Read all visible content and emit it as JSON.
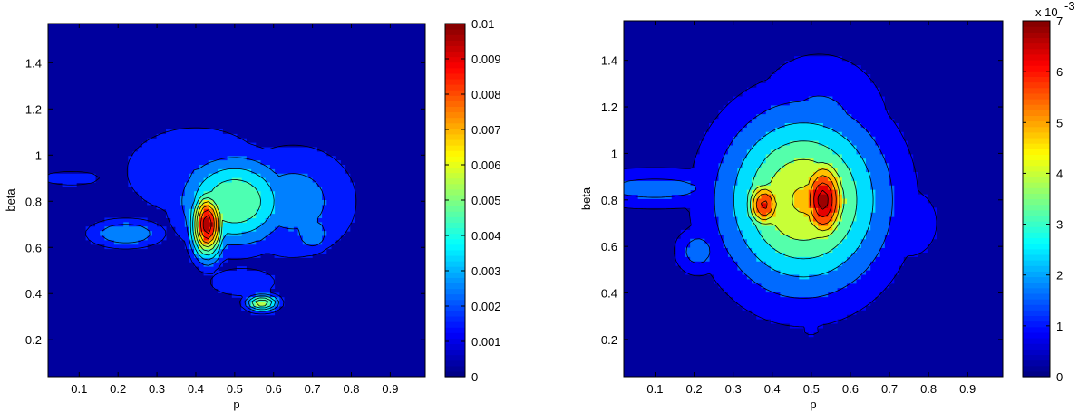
{
  "chart_data": [
    {
      "type": "contour",
      "xlabel": "p",
      "ylabel": "beta",
      "xlim": [
        0.02,
        0.99
      ],
      "ylim": [
        0.04,
        1.57
      ],
      "xticks": [
        0.1,
        0.2,
        0.3,
        0.4,
        0.5,
        0.6,
        0.7,
        0.8,
        0.9
      ],
      "yticks": [
        0.2,
        0.4,
        0.6,
        0.8,
        1.0,
        1.2,
        1.4
      ],
      "xtick_labels": [
        "0.1",
        "0.2",
        "0.3",
        "0.4",
        "0.5",
        "0.6",
        "0.7",
        "0.8",
        "0.9"
      ],
      "ytick_labels": [
        "0.2",
        "0.4",
        "0.6",
        "0.8",
        "1",
        "1.2",
        "1.4"
      ],
      "colorbar": {
        "colormap": "jet",
        "range": [
          0,
          0.01
        ],
        "ticks": [
          0,
          0.001,
          0.002,
          0.003,
          0.004,
          0.005,
          0.006,
          0.007,
          0.008,
          0.009,
          0.01
        ],
        "tick_labels": [
          "0",
          "0.001",
          "0.002",
          "0.003",
          "0.004",
          "0.005",
          "0.006",
          "0.007",
          "0.008",
          "0.009",
          "0.01"
        ],
        "multiplier": ""
      },
      "levels": [
        0.001,
        0.002,
        0.003,
        0.004,
        0.005,
        0.006,
        0.007,
        0.008,
        0.009
      ],
      "peaks": [
        {
          "x": 0.43,
          "y": 0.7,
          "value": 0.0098,
          "sx": 0.028,
          "sy": 0.1
        },
        {
          "x": 0.5,
          "y": 0.8,
          "value": 0.005,
          "sx": 0.1,
          "sy": 0.14
        },
        {
          "x": 0.565,
          "y": 0.71,
          "value": 0.003,
          "sx": 0.025,
          "sy": 0.09
        },
        {
          "x": 0.22,
          "y": 0.66,
          "value": 0.003,
          "sx": 0.07,
          "sy": 0.045
        },
        {
          "x": 0.4,
          "y": 0.93,
          "value": 0.002,
          "sx": 0.15,
          "sy": 0.16
        },
        {
          "x": 0.7,
          "y": 0.66,
          "value": 0.003,
          "sx": 0.035,
          "sy": 0.06
        },
        {
          "x": 0.57,
          "y": 0.36,
          "value": 0.006,
          "sx": 0.03,
          "sy": 0.025
        },
        {
          "x": 0.65,
          "y": 0.8,
          "value": 0.0025,
          "sx": 0.12,
          "sy": 0.18
        },
        {
          "x": 0.08,
          "y": 0.9,
          "value": 0.0012,
          "sx": 0.12,
          "sy": 0.05
        },
        {
          "x": 0.52,
          "y": 0.45,
          "value": 0.002,
          "sx": 0.07,
          "sy": 0.05
        }
      ]
    },
    {
      "type": "contour",
      "xlabel": "p",
      "ylabel": "beta",
      "xlim": [
        0.02,
        0.99
      ],
      "ylim": [
        0.04,
        1.57
      ],
      "xticks": [
        0.1,
        0.2,
        0.3,
        0.4,
        0.5,
        0.6,
        0.7,
        0.8,
        0.9
      ],
      "yticks": [
        0.2,
        0.4,
        0.6,
        0.8,
        1.0,
        1.2,
        1.4
      ],
      "xtick_labels": [
        "0.1",
        "0.2",
        "0.3",
        "0.4",
        "0.5",
        "0.6",
        "0.7",
        "0.8",
        "0.9"
      ],
      "ytick_labels": [
        "0.2",
        "0.4",
        "0.6",
        "0.8",
        "1",
        "1.2",
        "1.4"
      ],
      "colorbar": {
        "colormap": "jet",
        "range": [
          0,
          7
        ],
        "ticks": [
          0,
          1,
          2,
          3,
          4,
          5,
          6,
          7
        ],
        "tick_labels": [
          "0",
          "1",
          "2",
          "3",
          "4",
          "5",
          "6",
          "7"
        ],
        "multiplier": "x 10",
        "multiplier_exponent": "-3"
      },
      "levels": [
        0.5,
        1.2,
        2.0,
        2.8,
        3.6,
        4.4,
        5.2,
        6.0,
        6.6
      ],
      "peaks": [
        {
          "x": 0.53,
          "y": 0.8,
          "value": 6.9,
          "sx": 0.045,
          "sy": 0.14
        },
        {
          "x": 0.38,
          "y": 0.78,
          "value": 6.2,
          "sx": 0.035,
          "sy": 0.08
        },
        {
          "x": 0.48,
          "y": 0.8,
          "value": 4.5,
          "sx": 0.14,
          "sy": 0.26
        },
        {
          "x": 0.52,
          "y": 1.1,
          "value": 1.5,
          "sx": 0.12,
          "sy": 0.22
        },
        {
          "x": 0.1,
          "y": 0.85,
          "value": 1.5,
          "sx": 0.16,
          "sy": 0.06
        },
        {
          "x": 0.21,
          "y": 0.58,
          "value": 1.6,
          "sx": 0.04,
          "sy": 0.07
        },
        {
          "x": 0.75,
          "y": 0.7,
          "value": 1.0,
          "sx": 0.06,
          "sy": 0.12
        },
        {
          "x": 0.44,
          "y": 0.34,
          "value": 0.8,
          "sx": 0.02,
          "sy": 0.02
        },
        {
          "x": 0.5,
          "y": 0.24,
          "value": 0.8,
          "sx": 0.02,
          "sy": 0.02
        },
        {
          "x": 0.58,
          "y": 0.45,
          "value": 1.0,
          "sx": 0.07,
          "sy": 0.06
        }
      ]
    }
  ]
}
